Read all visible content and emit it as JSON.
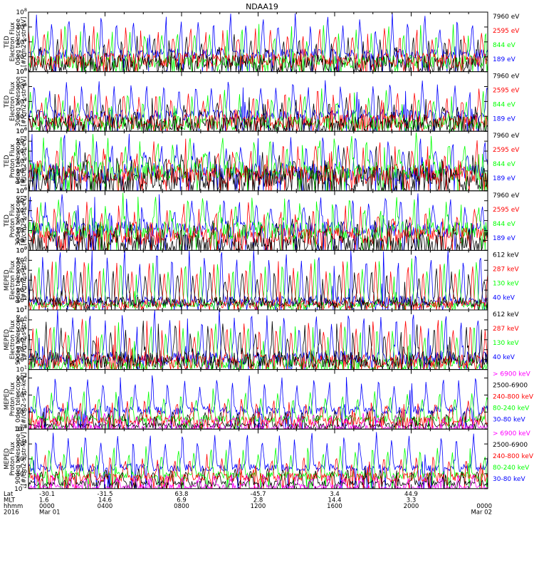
{
  "chart_data": {
    "type": "line",
    "title": "NDAA19",
    "ylim": [
      -2,
      8
    ],
    "panels": [
      {
        "ylabel": [
          "TED",
          "Electron Flux",
          "0deg telescope",
          "[#/cm2-s-str-eV]"
        ],
        "ylim_exp": [
          0,
          8
        ],
        "ticks": [
          0,
          2,
          4,
          6,
          8
        ],
        "series": [
          {
            "name": "7960 eV",
            "color": "#000000",
            "base": 1.0,
            "amp": 2.8,
            "noise": 1.2,
            "floor": 0.0
          },
          {
            "name": "2595 eV",
            "color": "#ff0000",
            "base": 1.5,
            "amp": 3.5,
            "noise": 1.0,
            "floor": 0.0
          },
          {
            "name": "844 eV",
            "color": "#00ff00",
            "base": 1.3,
            "amp": 3.8,
            "noise": 0.9,
            "floor": 0.0
          },
          {
            "name": "189 eV",
            "color": "#0000ff",
            "base": 2.4,
            "amp": 4.2,
            "noise": 0.7,
            "floor": 0.0
          }
        ]
      },
      {
        "ylabel": [
          "TED",
          "Electron Flux",
          "30deg telescope",
          "[#/cm2-s-str-eV]"
        ],
        "ylim_exp": [
          0,
          8
        ],
        "ticks": [
          0,
          2,
          4,
          6,
          8
        ],
        "series": [
          {
            "name": "7960 eV",
            "color": "#000000",
            "base": 0.8,
            "amp": 2.5,
            "noise": 1.2,
            "floor": 0.0
          },
          {
            "name": "2595 eV",
            "color": "#ff0000",
            "base": 1.3,
            "amp": 3.3,
            "noise": 1.0,
            "floor": 0.0
          },
          {
            "name": "844 eV",
            "color": "#00ff00",
            "base": 1.1,
            "amp": 3.4,
            "noise": 0.9,
            "floor": 0.0
          },
          {
            "name": "189 eV",
            "color": "#0000ff",
            "base": 2.2,
            "amp": 3.6,
            "noise": 0.7,
            "floor": 0.0
          }
        ]
      },
      {
        "ylabel": [
          "TED",
          "Proton Flux",
          "0deg telescope",
          "[#/cm2-s-str-eV]"
        ],
        "ylim_exp": [
          0,
          6
        ],
        "ticks": [
          0,
          1,
          2,
          3,
          4,
          5,
          6
        ],
        "series": [
          {
            "name": "7960 eV",
            "color": "#000000",
            "base": 1.0,
            "amp": 1.8,
            "noise": 1.3,
            "floor": 0.0
          },
          {
            "name": "2595 eV",
            "color": "#ff0000",
            "base": 1.6,
            "amp": 2.2,
            "noise": 1.0,
            "floor": 0.0
          },
          {
            "name": "844 eV",
            "color": "#00ff00",
            "base": 2.0,
            "amp": 2.6,
            "noise": 1.0,
            "floor": 0.0
          },
          {
            "name": "189 eV",
            "color": "#0000ff",
            "base": 1.9,
            "amp": 2.5,
            "noise": 0.9,
            "floor": 0.0
          }
        ]
      },
      {
        "ylabel": [
          "TED",
          "Proton Flux",
          "30deg telescope",
          "[#/cm2-s-str-eV]"
        ],
        "ylim_exp": [
          0,
          6
        ],
        "ticks": [
          0,
          1,
          2,
          3,
          4,
          5,
          6
        ],
        "series": [
          {
            "name": "7960 eV",
            "color": "#000000",
            "base": 0.5,
            "amp": 1.6,
            "noise": 1.1,
            "floor": 0.0
          },
          {
            "name": "2595 eV",
            "color": "#ff0000",
            "base": 1.4,
            "amp": 2.0,
            "noise": 0.9,
            "floor": 0.0
          },
          {
            "name": "844 eV",
            "color": "#00ff00",
            "base": 2.0,
            "amp": 2.4,
            "noise": 0.9,
            "floor": 0.0
          },
          {
            "name": "189 eV",
            "color": "#0000ff",
            "base": 2.1,
            "amp": 2.3,
            "noise": 0.8,
            "floor": 0.0
          }
        ]
      },
      {
        "ylabel": [
          "MEPED",
          "Electron Flux",
          "0deg telescope",
          "[#/cm2-s-str]"
        ],
        "ylim_exp": [
          1,
          7
        ],
        "ticks": [
          1,
          2,
          3,
          4,
          5,
          6,
          7
        ],
        "series": [
          {
            "name": "612 keV",
            "color": "#000000",
            "base": 1.8,
            "amp": 2.5,
            "noise": 0.5,
            "floor": 1.0
          },
          {
            "name": "287 keV",
            "color": "#ff0000",
            "base": 1.6,
            "amp": 3.5,
            "noise": 0.4,
            "floor": 1.0
          },
          {
            "name": "130 keV",
            "color": "#00ff00",
            "base": 1.5,
            "amp": 3.8,
            "noise": 0.3,
            "floor": 1.0
          },
          {
            "name": "40 keV",
            "color": "#0000ff",
            "base": 1.9,
            "amp": 4.5,
            "noise": 0.5,
            "floor": 1.0
          }
        ]
      },
      {
        "ylabel": [
          "MEPED",
          "Electron Flux",
          "90deg telescope",
          "[#/cm2-s-str]"
        ],
        "ylim_exp": [
          1,
          7
        ],
        "ticks": [
          1,
          2,
          3,
          4,
          5,
          6,
          7
        ],
        "series": [
          {
            "name": "612 keV",
            "color": "#000000",
            "base": 2.0,
            "amp": 2.8,
            "noise": 0.8,
            "floor": 1.0
          },
          {
            "name": "287 keV",
            "color": "#ff0000",
            "base": 1.8,
            "amp": 3.2,
            "noise": 0.7,
            "floor": 1.0
          },
          {
            "name": "130 keV",
            "color": "#00ff00",
            "base": 1.5,
            "amp": 3.4,
            "noise": 0.6,
            "floor": 1.0
          },
          {
            "name": "40 keV",
            "color": "#0000ff",
            "base": 2.2,
            "amp": 3.8,
            "noise": 0.7,
            "floor": 1.0
          }
        ]
      },
      {
        "ylabel": [
          "MEPED",
          "Proton Flux",
          "0deg telescope",
          "[#/cm2-s-str-keV]"
        ],
        "ylim_exp": [
          -2,
          5
        ],
        "ticks": [
          -2,
          0,
          2,
          4
        ],
        "series": [
          {
            "name": "> 6900 keV",
            "color": "#ff00ff",
            "base": -1.9,
            "amp": 0.8,
            "noise": 0.4,
            "floor": -2.0
          },
          {
            "name": "2500-6900",
            "color": "#000000",
            "base": -1.6,
            "amp": 1.0,
            "noise": 0.3,
            "floor": -2.0
          },
          {
            "name": "240-800 keV",
            "color": "#ff0000",
            "base": -1.1,
            "amp": 1.6,
            "noise": 0.6,
            "floor": -2.0
          },
          {
            "name": "80-240 keV",
            "color": "#00ff00",
            "base": -0.8,
            "amp": 2.6,
            "noise": 0.4,
            "floor": -2.0
          },
          {
            "name": "30-80 keV",
            "color": "#0000ff",
            "base": 0.2,
            "amp": 3.2,
            "noise": 0.5,
            "floor": -2.0
          }
        ]
      },
      {
        "ylabel": [
          "MEPED",
          "Proton Flux",
          "90deg telescope",
          "[#/cm2-s-str-keV]"
        ],
        "ylim_exp": [
          -2,
          6
        ],
        "ticks": [
          -2,
          0,
          2,
          4,
          6
        ],
        "series": [
          {
            "name": "> 6900 keV",
            "color": "#ff00ff",
            "base": -1.8,
            "amp": 1.0,
            "noise": 0.4,
            "floor": -2.0
          },
          {
            "name": "2500-6900",
            "color": "#000000",
            "base": -1.3,
            "amp": 1.2,
            "noise": 0.4,
            "floor": -2.0
          },
          {
            "name": "240-800 keV",
            "color": "#ff0000",
            "base": -0.5,
            "amp": 2.0,
            "noise": 0.6,
            "floor": -2.0
          },
          {
            "name": "80-240 keV",
            "color": "#00ff00",
            "base": -0.2,
            "amp": 3.0,
            "noise": 0.5,
            "floor": -2.0
          },
          {
            "name": "30-80 keV",
            "color": "#0000ff",
            "base": 0.8,
            "amp": 3.8,
            "noise": 0.5,
            "floor": -2.0
          }
        ]
      }
    ],
    "xaxis": {
      "row_labels": [
        "Lat",
        "MLT",
        "hhmm",
        "2016"
      ],
      "ticks": [
        {
          "hour": 0,
          "lat": "-30.1",
          "mlt": "1.6",
          "hhmm": "0000",
          "date": "Mar 01"
        },
        {
          "hour": 4,
          "lat": "-31.5",
          "mlt": "14.6",
          "hhmm": "0400",
          "date": ""
        },
        {
          "hour": 8,
          "lat": "63.8",
          "mlt": "6.9",
          "hhmm": "0800",
          "date": ""
        },
        {
          "hour": 12,
          "lat": "-45.7",
          "mlt": "2.8",
          "hhmm": "1200",
          "date": ""
        },
        {
          "hour": 16,
          "lat": "3.4",
          "mlt": "14.4",
          "hhmm": "1600",
          "date": ""
        },
        {
          "hour": 20,
          "lat": "44.9",
          "mlt": "3.3",
          "hhmm": "2000",
          "date": ""
        },
        {
          "hour": 24,
          "lat": "",
          "mlt": "",
          "hhmm": "0000",
          "date": "Mar 02"
        }
      ],
      "xlim_hours": [
        0,
        24
      ],
      "orbits_per_day": 14.2
    }
  }
}
